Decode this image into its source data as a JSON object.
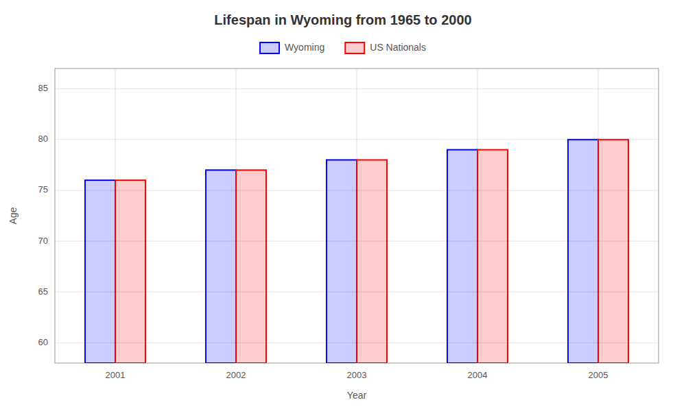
{
  "chart_data": {
    "type": "bar",
    "title": "Lifespan in Wyoming from 1965 to 2000",
    "xlabel": "Year",
    "ylabel": "Age",
    "categories": [
      "2001",
      "2002",
      "2003",
      "2004",
      "2005"
    ],
    "series": [
      {
        "name": "Wyoming",
        "color": "#0000FF",
        "values": [
          76.0,
          77.0,
          78.0,
          79.0,
          80.0
        ]
      },
      {
        "name": "US Nationals",
        "color": "#FF0000",
        "values": [
          76.0,
          77.0,
          78.0,
          79.0,
          80.0
        ]
      }
    ],
    "ylim": [
      58,
      87
    ],
    "yticks": [
      60,
      65,
      70,
      75,
      80,
      85
    ],
    "grid": true,
    "legend": "top"
  }
}
